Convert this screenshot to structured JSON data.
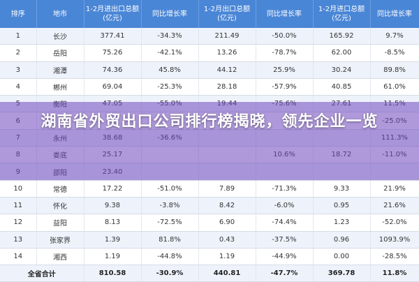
{
  "table": {
    "headers": [
      {
        "l1": "排序",
        "l2": ""
      },
      {
        "l1": "地市",
        "l2": ""
      },
      {
        "l1": "1-2月进出口总额",
        "l2": "(亿元)"
      },
      {
        "l1": "同比增长率",
        "l2": ""
      },
      {
        "l1": "1-2月出口总额",
        "l2": "(亿元)"
      },
      {
        "l1": "同比增长率",
        "l2": ""
      },
      {
        "l1": "1-2月进口总额",
        "l2": "(亿元)"
      },
      {
        "l1": "同比增长率",
        "l2": ""
      }
    ],
    "rows": [
      [
        "1",
        "长沙",
        "377.41",
        "-34.3%",
        "211.49",
        "-50.0%",
        "165.92",
        "9.7%"
      ],
      [
        "2",
        "岳阳",
        "75.26",
        "-42.1%",
        "13.26",
        "-78.7%",
        "62.00",
        "-8.5%"
      ],
      [
        "3",
        "湘潭",
        "74.36",
        "45.8%",
        "44.12",
        "25.9%",
        "30.24",
        "89.8%"
      ],
      [
        "4",
        "郴州",
        "69.04",
        "-25.3%",
        "28.18",
        "-57.9%",
        "40.85",
        "61.0%"
      ],
      [
        "5",
        "衡阳",
        "47.05",
        "-55.0%",
        "19.44",
        "-75.6%",
        "27.61",
        "11.5%"
      ],
      [
        "6",
        "",
        "",
        "",
        "",
        "",
        "",
        "-25.0%"
      ],
      [
        "7",
        "永州",
        "38.68",
        "-36.6%",
        "",
        "",
        "",
        "111.3%"
      ],
      [
        "8",
        "娄底",
        "25.17",
        "",
        "",
        "10.6%",
        "18.72",
        "-11.0%"
      ],
      [
        "9",
        "邵阳",
        "23.40",
        "",
        "",
        "",
        "",
        ""
      ],
      [
        "10",
        "常德",
        "17.22",
        "-51.0%",
        "7.89",
        "-71.3%",
        "9.33",
        "21.9%"
      ],
      [
        "11",
        "怀化",
        "9.38",
        "-3.8%",
        "8.42",
        "-6.0%",
        "0.95",
        "21.6%"
      ],
      [
        "12",
        "益阳",
        "8.13",
        "-72.5%",
        "6.90",
        "-74.4%",
        "1.23",
        "-52.0%"
      ],
      [
        "13",
        "张家界",
        "1.39",
        "81.8%",
        "0.43",
        "-37.5%",
        "0.96",
        "1093.9%"
      ],
      [
        "14",
        "湘西",
        "1.19",
        "-44.8%",
        "1.19",
        "-44.9%",
        "0.00",
        "-28.5%"
      ]
    ],
    "total": [
      "全省合计",
      "810.58",
      "-30.9%",
      "440.81",
      "-47.7%",
      "369.78",
      "11.8%"
    ]
  },
  "banner": {
    "title": "湖南省外贸出口公司排行榜揭晓，领先企业一览"
  },
  "colors": {
    "header_bg": "#4a86d6",
    "banner_overlay": "#6e46be",
    "row_alt": "#eef3fb"
  }
}
